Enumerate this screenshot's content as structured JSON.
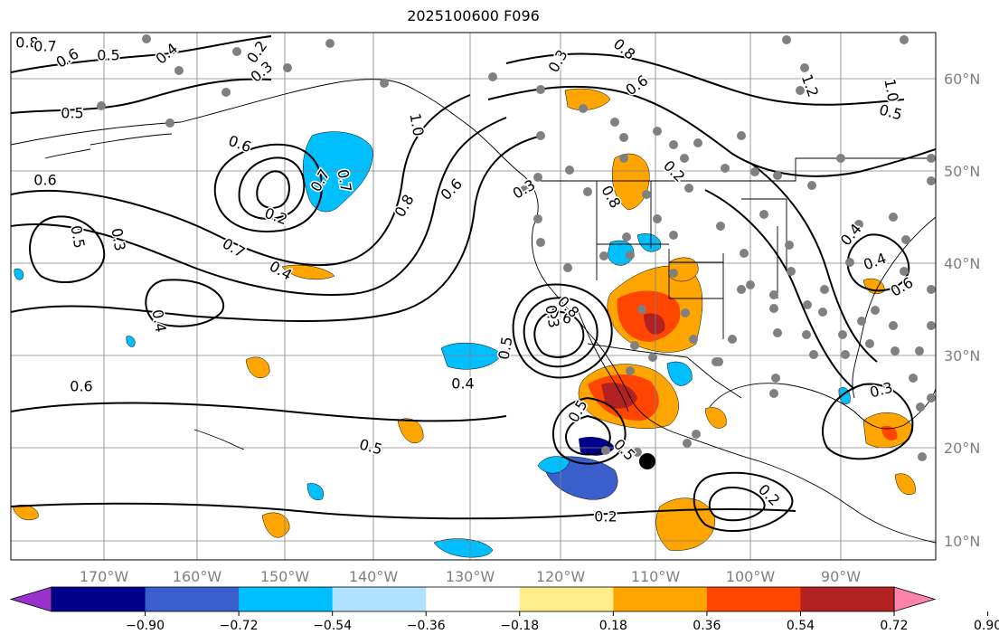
{
  "title": "2025100600 F096",
  "map": {
    "lon_ticks": [
      "170°W",
      "160°W",
      "150°W",
      "140°W",
      "130°W",
      "120°W",
      "110°W",
      "100°W",
      "90°W"
    ],
    "lat_ticks": [
      "60°N",
      "50°N",
      "40°N",
      "30°N",
      "20°N",
      "10°N"
    ],
    "contour_labels": [
      "0.8",
      "0.7",
      "0.6",
      "0.5",
      "0.4",
      "0.2",
      "0.3",
      "0.5",
      "0.6",
      "0.5",
      "0.2",
      "0.4",
      "0.3",
      "0.7",
      "0.6",
      "0.7",
      "0.4",
      "0.6",
      "0.5",
      "0.8",
      "0.6",
      "1.0",
      "0.3",
      "0.7",
      "0.8",
      "0.6",
      "0.2",
      "0.3",
      "0.6",
      "0.8",
      "0.5",
      "0.5",
      "0.5",
      "0.4",
      "0.2",
      "0.2",
      "0.3",
      "0.4",
      "0.4",
      "0.6",
      "0.5",
      "1.0",
      "1.2",
      "0.8",
      "0.3"
    ],
    "colors": {
      "land_outline": "#000000",
      "grid": "#808080",
      "dot": "#808080",
      "storm_marker": "#000000"
    }
  },
  "colorbar": {
    "levels": [
      "−0.90",
      "−0.72",
      "−0.54",
      "−0.36",
      "−0.18",
      "0.18",
      "0.36",
      "0.54",
      "0.72",
      "0.90"
    ],
    "colors": [
      "#9932cc",
      "#00008b",
      "#3a5fcd",
      "#00bfff",
      "#b0e2ff",
      "#ffffff",
      "#ffec8b",
      "#ffa500",
      "#ff4500",
      "#b22222",
      "#ff82ab"
    ]
  }
}
